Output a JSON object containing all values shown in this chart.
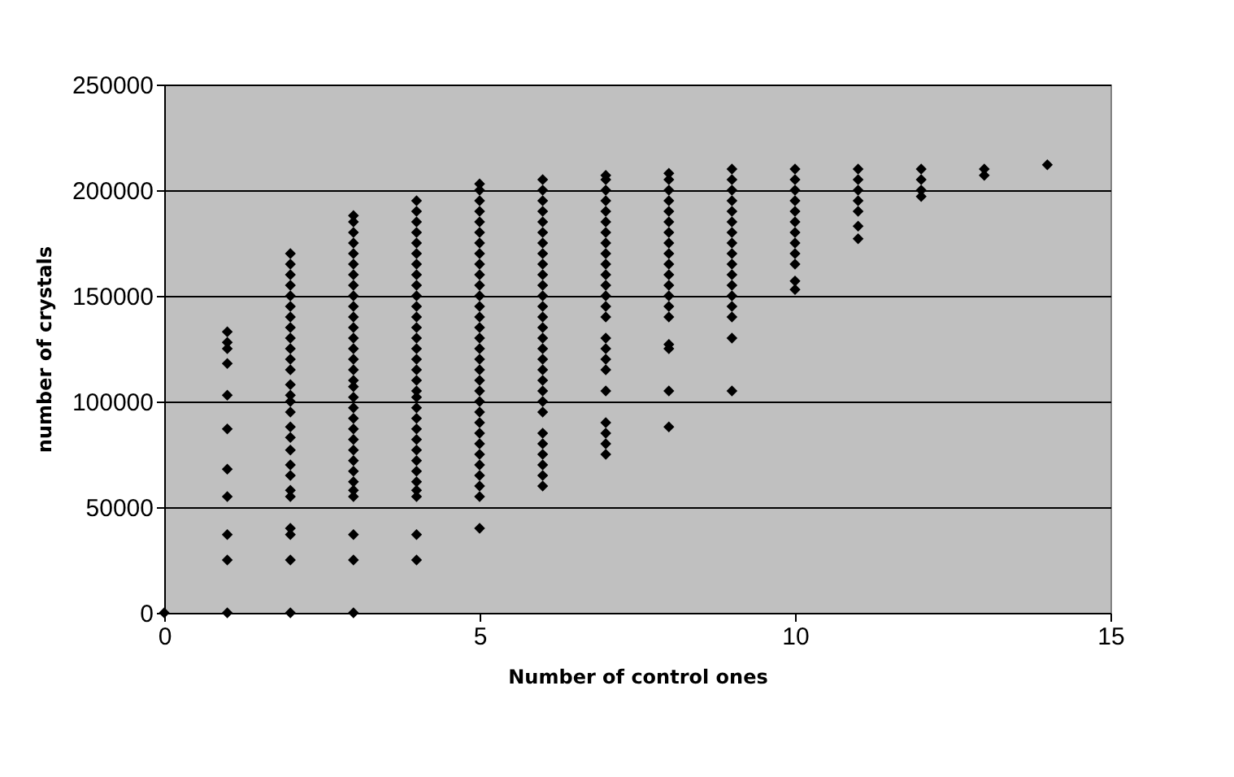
{
  "chart_data": {
    "type": "scatter",
    "xlabel": "Number of control ones",
    "ylabel": "number of  crystals",
    "xlim": [
      0,
      15
    ],
    "xticks": [
      0,
      5,
      10,
      15
    ],
    "ylim": [
      0,
      250000
    ],
    "yticks": [
      0,
      50000,
      100000,
      150000,
      200000,
      250000
    ],
    "grid": "y",
    "marker": "diamond",
    "x": [
      0,
      1,
      1,
      1,
      1,
      1,
      1,
      1,
      1,
      1,
      1,
      1,
      2,
      2,
      2,
      2,
      2,
      2,
      2,
      2,
      2,
      2,
      2,
      2,
      2,
      2,
      2,
      2,
      2,
      2,
      2,
      2,
      2,
      2,
      2,
      2,
      2,
      2,
      2,
      3,
      3,
      3,
      3,
      3,
      3,
      3,
      3,
      3,
      3,
      3,
      3,
      3,
      3,
      3,
      3,
      3,
      3,
      3,
      3,
      3,
      3,
      3,
      3,
      3,
      3,
      3,
      3,
      3,
      3,
      3,
      3,
      4,
      4,
      4,
      4,
      4,
      4,
      4,
      4,
      4,
      4,
      4,
      4,
      4,
      4,
      4,
      4,
      4,
      4,
      4,
      4,
      4,
      4,
      4,
      4,
      4,
      4,
      4,
      4,
      4,
      4,
      4,
      4,
      5,
      5,
      5,
      5,
      5,
      5,
      5,
      5,
      5,
      5,
      5,
      5,
      5,
      5,
      5,
      5,
      5,
      5,
      5,
      5,
      5,
      5,
      5,
      5,
      5,
      5,
      5,
      5,
      5,
      5,
      5,
      5,
      6,
      6,
      6,
      6,
      6,
      6,
      6,
      6,
      6,
      6,
      6,
      6,
      6,
      6,
      6,
      6,
      6,
      6,
      6,
      6,
      6,
      6,
      6,
      6,
      6,
      6,
      6,
      6,
      6,
      7,
      7,
      7,
      7,
      7,
      7,
      7,
      7,
      7,
      7,
      7,
      7,
      7,
      7,
      7,
      7,
      7,
      7,
      7,
      7,
      7,
      7,
      7,
      7,
      8,
      8,
      8,
      8,
      8,
      8,
      8,
      8,
      8,
      8,
      8,
      8,
      8,
      8,
      8,
      8,
      8,
      8,
      8,
      9,
      9,
      9,
      9,
      9,
      9,
      9,
      9,
      9,
      9,
      9,
      9,
      9,
      9,
      9,
      9,
      9,
      10,
      10,
      10,
      10,
      10,
      10,
      10,
      10,
      10,
      10,
      10,
      10,
      11,
      11,
      11,
      11,
      11,
      11,
      11,
      12,
      12,
      12,
      12,
      13,
      13,
      14
    ],
    "series": [
      {
        "color": "#000000",
        "values": [
          0,
          0,
          25000,
          37000,
          55000,
          68000,
          87000,
          103000,
          118000,
          125000,
          128000,
          133000,
          0,
          25000,
          37000,
          40000,
          55000,
          58000,
          65000,
          70000,
          77000,
          83000,
          88000,
          95000,
          100000,
          103000,
          108000,
          115000,
          120000,
          125000,
          130000,
          135000,
          140000,
          145000,
          150000,
          155000,
          160000,
          165000,
          170000,
          0,
          25000,
          37000,
          55000,
          58000,
          62000,
          67000,
          72000,
          77000,
          82000,
          87000,
          92000,
          97000,
          102000,
          107000,
          110000,
          115000,
          120000,
          125000,
          130000,
          135000,
          140000,
          145000,
          150000,
          155000,
          160000,
          165000,
          170000,
          175000,
          180000,
          185000,
          188000,
          25000,
          37000,
          55000,
          58000,
          62000,
          67000,
          72000,
          77000,
          82000,
          87000,
          92000,
          97000,
          102000,
          105000,
          110000,
          115000,
          120000,
          125000,
          130000,
          135000,
          140000,
          145000,
          150000,
          155000,
          160000,
          165000,
          170000,
          175000,
          180000,
          185000,
          190000,
          195000,
          40000,
          55000,
          60000,
          65000,
          70000,
          75000,
          80000,
          85000,
          90000,
          95000,
          100000,
          105000,
          110000,
          115000,
          120000,
          125000,
          130000,
          135000,
          140000,
          145000,
          150000,
          155000,
          160000,
          165000,
          170000,
          175000,
          180000,
          185000,
          190000,
          195000,
          200000,
          203000,
          60000,
          65000,
          70000,
          75000,
          80000,
          85000,
          95000,
          100000,
          105000,
          110000,
          115000,
          120000,
          125000,
          130000,
          135000,
          140000,
          145000,
          150000,
          155000,
          160000,
          165000,
          170000,
          175000,
          180000,
          185000,
          190000,
          195000,
          200000,
          205000,
          75000,
          80000,
          85000,
          90000,
          105000,
          115000,
          120000,
          125000,
          130000,
          140000,
          145000,
          150000,
          155000,
          160000,
          165000,
          170000,
          175000,
          180000,
          185000,
          190000,
          195000,
          200000,
          205000,
          207000,
          88000,
          105000,
          125000,
          127000,
          140000,
          145000,
          150000,
          155000,
          160000,
          165000,
          170000,
          175000,
          180000,
          185000,
          190000,
          195000,
          200000,
          205000,
          208000,
          105000,
          130000,
          140000,
          145000,
          150000,
          155000,
          160000,
          165000,
          170000,
          175000,
          180000,
          185000,
          190000,
          195000,
          200000,
          205000,
          210000,
          153000,
          157000,
          165000,
          170000,
          175000,
          180000,
          185000,
          190000,
          195000,
          200000,
          205000,
          210000,
          177000,
          183000,
          190000,
          195000,
          200000,
          205000,
          210000,
          197000,
          200000,
          205000,
          210000,
          207000,
          210000,
          212000
        ]
      }
    ]
  }
}
